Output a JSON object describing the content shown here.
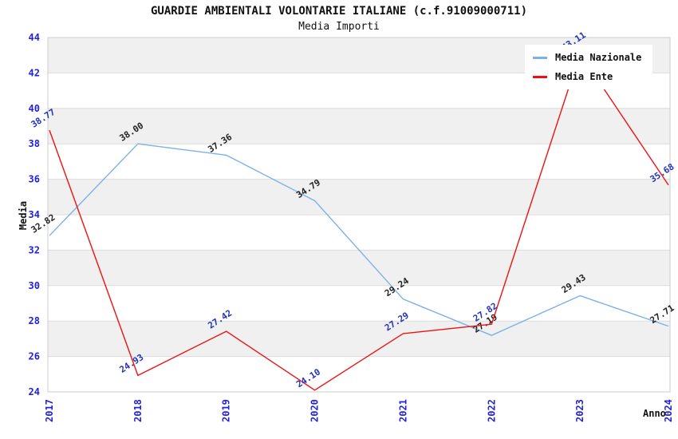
{
  "chart_data": {
    "type": "line",
    "title": "GUARDIE AMBIENTALI VOLONTARIE ITALIANE (c.f.91009000711)",
    "subtitle": "Media Importi",
    "xlabel": "Anno",
    "ylabel": "Media",
    "x": [
      "2017",
      "2018",
      "2019",
      "2020",
      "2021",
      "2022",
      "2023",
      "2024"
    ],
    "series": [
      {
        "name": "Media Nazionale",
        "color": "#7cb0e8",
        "label_color": "#222222",
        "values": [
          32.82,
          38.0,
          37.36,
          34.79,
          29.24,
          27.19,
          29.43,
          27.71
        ]
      },
      {
        "name": "Media Ente",
        "color": "#ee1111",
        "label_color": "#2233bb",
        "values": [
          38.77,
          24.93,
          27.42,
          24.1,
          27.29,
          27.82,
          43.11,
          35.68
        ]
      }
    ],
    "ylim": [
      24,
      44
    ],
    "ytick_step": 2,
    "yticks": [
      "24",
      "26",
      "28",
      "30",
      "32",
      "34",
      "36",
      "38",
      "40",
      "42",
      "44"
    ],
    "grid": true,
    "legend_position": "top-right",
    "band_colors": [
      "#f0f0f0",
      "#ffffff"
    ],
    "tick_color": "#2222dd",
    "gridline_color": "#dcdcdc",
    "axis_border_color": "#cccccc",
    "plot_background": "#ffffff"
  }
}
